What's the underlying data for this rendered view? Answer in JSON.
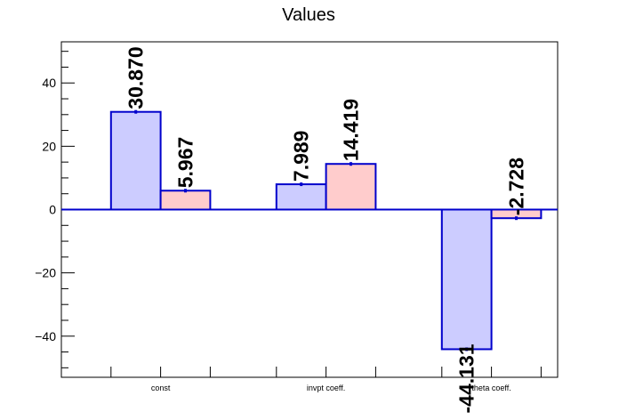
{
  "chart_data": {
    "type": "bar",
    "title": "Values",
    "xlabel": "",
    "ylabel": "",
    "categories": [
      "const",
      "invpt coeff.",
      "theta coeff."
    ],
    "series": [
      {
        "values": [
          30.87,
          7.989,
          -44.131
        ],
        "labels": [
          "30.870",
          "7.989",
          "-44.131"
        ],
        "color": "#ccccff"
      },
      {
        "values": [
          5.967,
          14.419,
          -2.728
        ],
        "labels": [
          "5.967",
          "14.419",
          "-2.728"
        ],
        "color": "#ffcccc"
      }
    ],
    "ylim": [
      -53,
      53
    ],
    "y_ticks": [
      -40,
      -20,
      0,
      20,
      40
    ],
    "y_tick_labels": [
      "−40",
      "−20",
      "0",
      "20",
      "40"
    ],
    "edge_color": "#0000cc",
    "grid": false,
    "legend": "none"
  }
}
